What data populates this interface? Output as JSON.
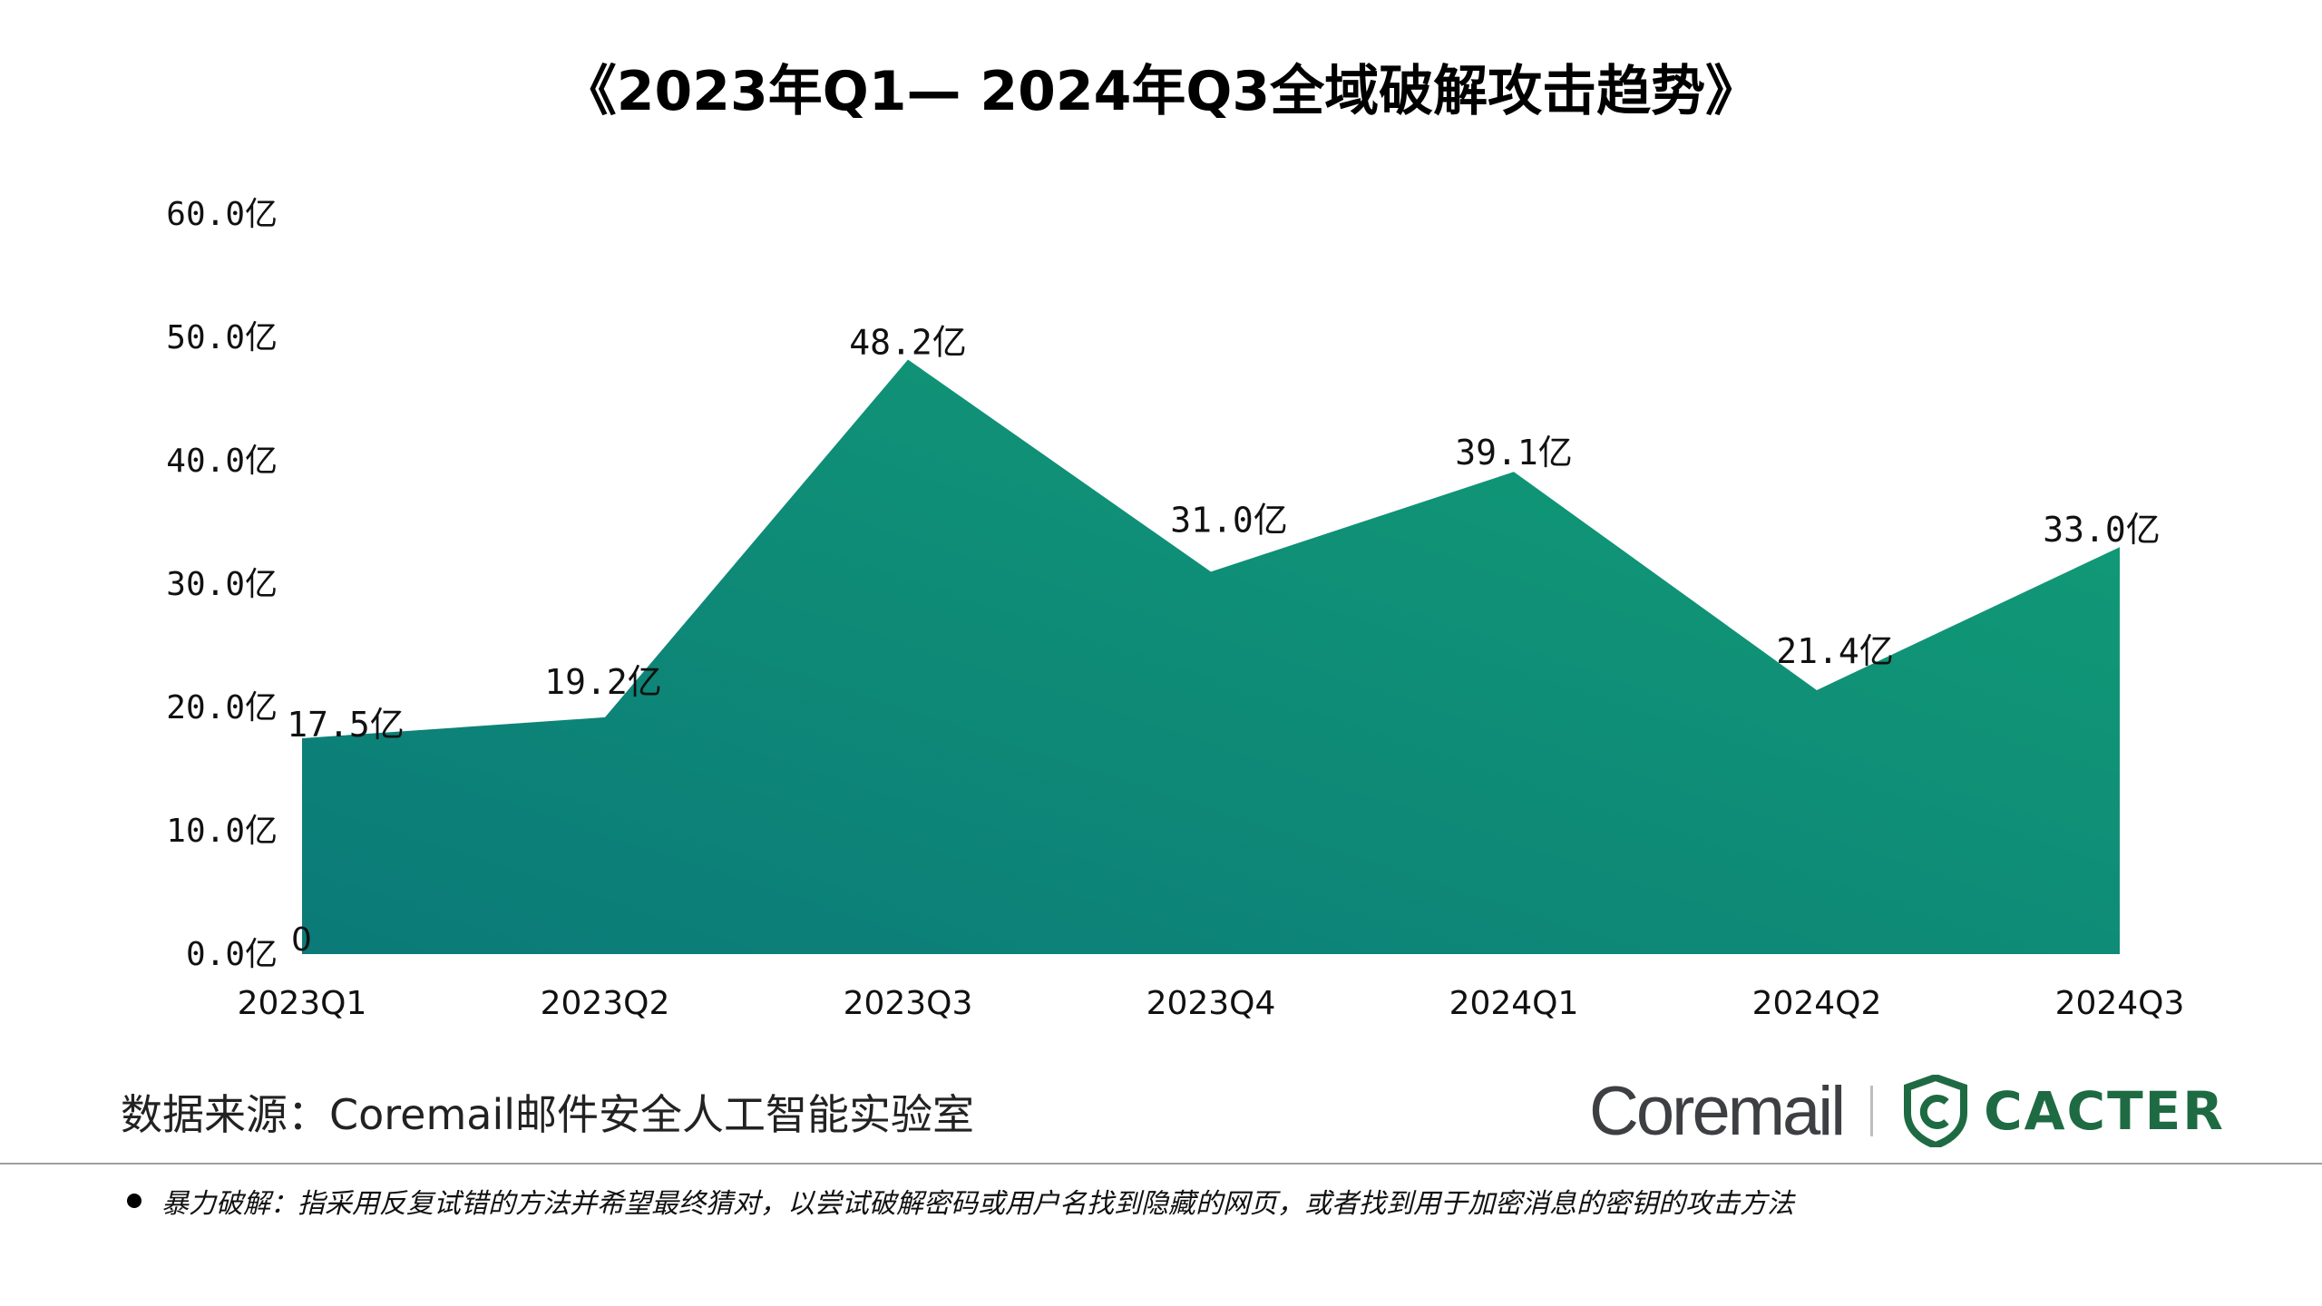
{
  "chart_data": {
    "type": "area",
    "title": "《2023年Q1— 2024年Q3全域破解攻击趋势》",
    "categories": [
      "2023Q1",
      "2023Q2",
      "2023Q3",
      "2023Q4",
      "2024Q1",
      "2024Q2",
      "2024Q3"
    ],
    "values": [
      17.5,
      19.2,
      48.2,
      31.0,
      39.1,
      21.4,
      33.0
    ],
    "data_labels": [
      "17.5亿",
      "19.2亿",
      "48.2亿",
      "31.0亿",
      "39.1亿",
      "21.4亿",
      "33.0亿"
    ],
    "yticks": [
      0,
      10,
      20,
      30,
      40,
      50,
      60
    ],
    "ytick_labels": [
      "0.0亿",
      "10.0亿",
      "20.0亿",
      "30.0亿",
      "40.0亿",
      "50.0亿",
      "60.0亿"
    ],
    "ylim": [
      0,
      60
    ],
    "zero_label": "0",
    "grid": false,
    "legend": "none",
    "colors": {
      "gradient_start": "#0b7a78",
      "gradient_end": "#129e76"
    }
  },
  "source": "数据来源：Coremail邮件安全人工智能实验室",
  "logos": {
    "coremail": "Coremail",
    "cacter": "CACTER",
    "shield_color": "#1e6b43"
  },
  "footnote": "暴力破解：指采用反复试错的方法并希望最终猜对，以尝试破解密码或用户名找到隐藏的网页，或者找到用于加密消息的密钥的攻击方法"
}
